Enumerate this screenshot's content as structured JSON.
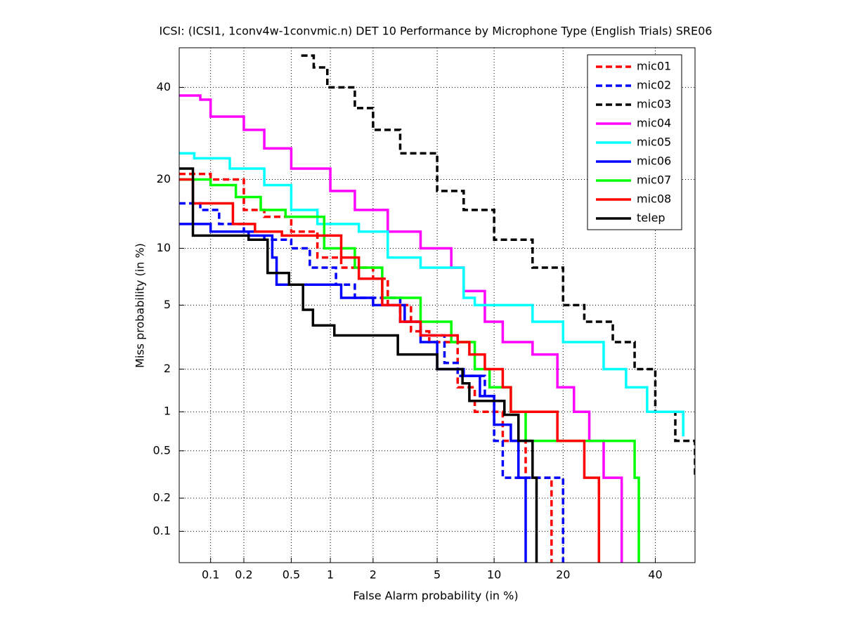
{
  "chart_data": {
    "type": "line",
    "scale": "probit",
    "step": true,
    "grid": true,
    "legend": "top-right",
    "title": "ICSI: (ICSI1, 1conv4w-1convmic.n) DET 10 Performance by Microphone Type (English Trials) SRE06",
    "xlabel": "False Alarm probability (in %)",
    "ylabel": "Miss probability (in %)",
    "xlim": [
      0.05,
      50
    ],
    "ylim": [
      0.05,
      50
    ],
    "xticks": [
      0.1,
      0.2,
      0.5,
      1,
      2,
      5,
      10,
      20,
      40
    ],
    "yticks": [
      0.1,
      0.2,
      0.5,
      1,
      2,
      5,
      10,
      20,
      40
    ],
    "series": [
      {
        "name": "mic01",
        "color": "#ff0000",
        "dash": true,
        "x": [
          0.05,
          0.1,
          0.2,
          0.3,
          0.5,
          0.8,
          1.2,
          2,
          2.5,
          3.5,
          4.5,
          6.5,
          8,
          11,
          14,
          18
        ],
        "values": [
          21,
          20,
          15,
          14,
          12,
          9,
          8,
          7,
          5,
          3.5,
          3,
          1.5,
          1,
          0.6,
          0.3,
          0.05
        ]
      },
      {
        "name": "mic02",
        "color": "#0000ff",
        "dash": true,
        "x": [
          0.05,
          0.08,
          0.12,
          0.2,
          0.3,
          0.5,
          0.7,
          1.1,
          1.5,
          3,
          4,
          5.5,
          6.5,
          9,
          10,
          11,
          20
        ],
        "values": [
          16,
          15,
          13,
          12,
          11,
          10,
          8,
          6.5,
          5.5,
          4,
          3.3,
          2.2,
          1.8,
          1.3,
          0.6,
          0.3,
          0.05
        ]
      },
      {
        "name": "mic03",
        "color": "#000000",
        "dash": true,
        "x": [
          0.6,
          0.75,
          0.95,
          1.5,
          2,
          3,
          5,
          7,
          10,
          15,
          20,
          24,
          30,
          35,
          40,
          45,
          50
        ],
        "values": [
          48,
          45,
          40,
          35,
          30,
          25,
          18,
          15,
          11,
          8,
          5,
          4,
          3,
          2,
          1,
          0.6,
          0.3
        ]
      },
      {
        "name": "mic04",
        "color": "#ff00ff",
        "dash": false,
        "x": [
          0.05,
          0.08,
          0.1,
          0.2,
          0.3,
          0.5,
          1,
          1.5,
          2.5,
          4,
          6,
          7,
          9,
          11,
          15,
          19,
          22,
          25,
          28,
          32
        ],
        "values": [
          38,
          37,
          33,
          30,
          26,
          22,
          18,
          15,
          12,
          10,
          8,
          6,
          4,
          3,
          2.5,
          1.5,
          1,
          0.6,
          0.3,
          0.05
        ]
      },
      {
        "name": "mic05",
        "color": "#00ffff",
        "dash": false,
        "x": [
          0.05,
          0.07,
          0.15,
          0.3,
          0.5,
          0.8,
          1.6,
          2.5,
          4,
          7,
          8,
          15,
          20,
          28,
          33,
          38,
          47
        ],
        "values": [
          25,
          24,
          22,
          19,
          15,
          13,
          12,
          9,
          8,
          5.5,
          5,
          4,
          3,
          2,
          1.5,
          1,
          0.65
        ]
      },
      {
        "name": "mic06",
        "color": "#0000ff",
        "dash": false,
        "x": [
          0.05,
          0.1,
          0.22,
          0.35,
          0.38,
          1.2,
          2,
          3.2,
          4,
          5,
          7,
          8.5,
          10,
          12,
          13,
          14
        ],
        "values": [
          13,
          12,
          11.5,
          9,
          6.5,
          5.5,
          5,
          4,
          3,
          2,
          1.8,
          1.3,
          0.8,
          0.6,
          0.3,
          0.05
        ]
      },
      {
        "name": "mic07",
        "color": "#00ff00",
        "dash": false,
        "x": [
          0.05,
          0.1,
          0.17,
          0.28,
          0.45,
          0.9,
          1.5,
          2.3,
          4,
          6,
          8,
          9.5,
          12,
          14,
          22,
          35,
          36
        ],
        "values": [
          20,
          19,
          17,
          15,
          14,
          10,
          8,
          5.5,
          4,
          3,
          2,
          1.5,
          1,
          0.6,
          0.6,
          0.3,
          0.05
        ]
      },
      {
        "name": "mic08",
        "color": "#ff0000",
        "dash": false,
        "x": [
          0.05,
          0.068,
          0.16,
          0.25,
          0.42,
          1.2,
          1.6,
          2.3,
          3,
          4,
          6.5,
          7.5,
          9,
          11,
          12,
          19,
          24,
          27
        ],
        "values": [
          20,
          16,
          13,
          12,
          11.5,
          9,
          7,
          5,
          4,
          3.3,
          3,
          2.5,
          2,
          1.5,
          1,
          0.6,
          0.3,
          0.05
        ]
      },
      {
        "name": "telep",
        "color": "#000000",
        "dash": false,
        "x": [
          0.05,
          0.068,
          0.22,
          0.32,
          0.48,
          0.62,
          0.74,
          1.07,
          1.6,
          2.9,
          5,
          6.9,
          7.5,
          11.2,
          13,
          15,
          15.6
        ],
        "values": [
          22,
          11.5,
          11,
          7.5,
          6.5,
          4.7,
          3.8,
          3.3,
          3.3,
          2.5,
          2,
          1.6,
          1.2,
          0.95,
          0.6,
          0.3,
          0.05
        ]
      }
    ]
  }
}
